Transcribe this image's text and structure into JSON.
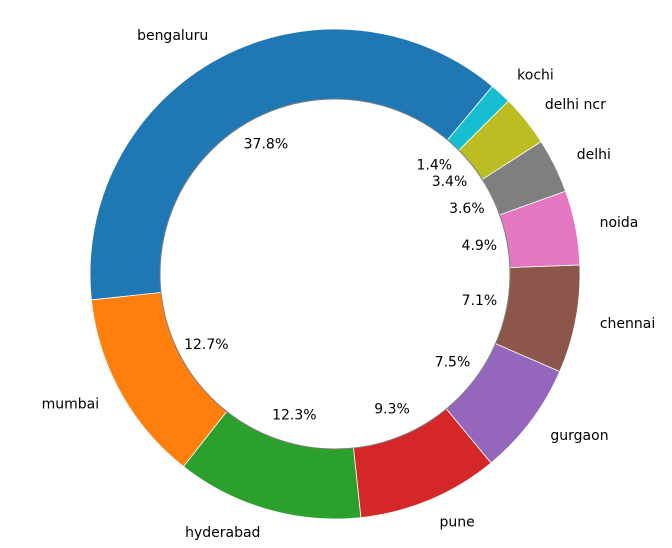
{
  "chart_data": {
    "type": "pie",
    "variant": "donut",
    "title": "",
    "direction": "counterclockwise",
    "start_angle_deg": 50,
    "categories": [
      "bengaluru",
      "mumbai",
      "hyderabad",
      "pune",
      "gurgaon",
      "chennai",
      "noida",
      "delhi",
      "delhi ncr",
      "kochi"
    ],
    "values": [
      37.8,
      12.7,
      12.3,
      9.3,
      7.5,
      7.1,
      4.9,
      3.6,
      3.4,
      1.4
    ],
    "labels": [
      "37.8%",
      "12.7%",
      "12.3%",
      "9.3%",
      "7.5%",
      "7.1%",
      "4.9%",
      "3.6%",
      "3.4%",
      "1.4%"
    ],
    "colors": [
      "#1f77b4",
      "#ff7f0e",
      "#2ca02c",
      "#d62728",
      "#9467bd",
      "#8c564b",
      "#e377c2",
      "#7f7f7f",
      "#bcbd22",
      "#17becf"
    ]
  }
}
